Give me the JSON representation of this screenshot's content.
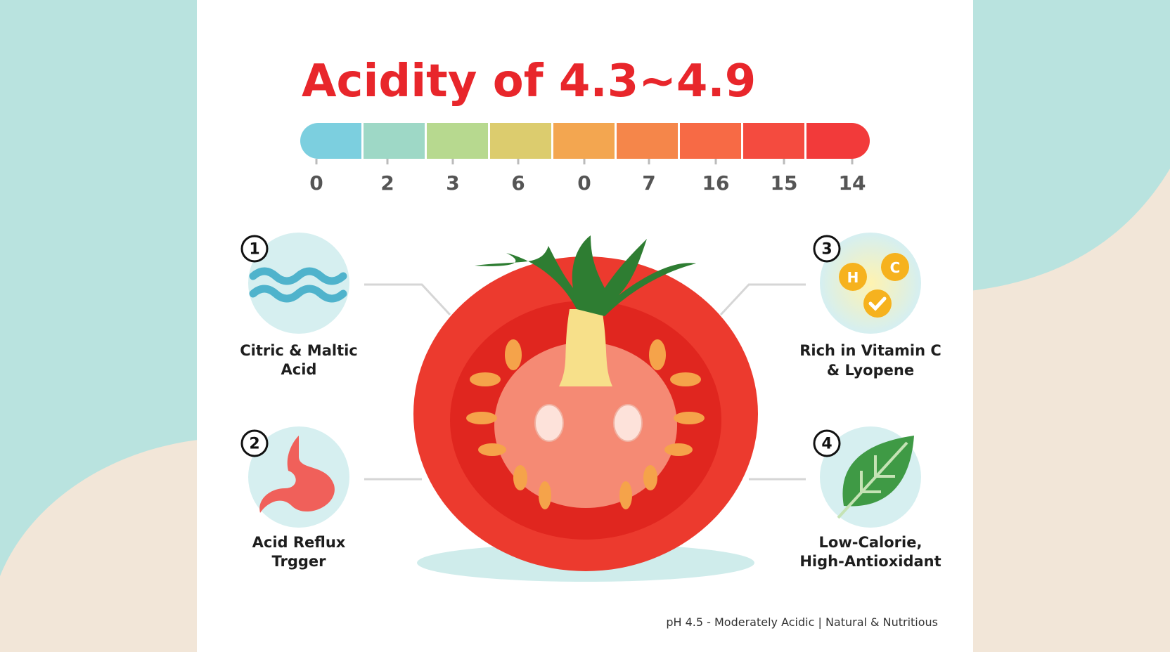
{
  "title": "Acidity of 4.3~4.9",
  "scale_labels": [
    "0",
    "2",
    "3",
    "6",
    "0",
    "7",
    "16",
    "15",
    "14"
  ],
  "items": [
    {
      "number": "1",
      "lines": [
        "Citric & Maltic",
        "Acid"
      ]
    },
    {
      "number": "2",
      "lines": [
        "Acid Reflux",
        "Trgger"
      ]
    },
    {
      "number": "3",
      "lines": [
        "Rich in Vitamin C",
        "& Lyopene"
      ],
      "icon_letters": [
        "H",
        "C"
      ]
    },
    {
      "number": "4",
      "lines": [
        "Low-Calorie,",
        "High-Antioxidant"
      ]
    }
  ],
  "footer": "pH 4.5 - Moderately Acidic | Natural & Nutritious"
}
